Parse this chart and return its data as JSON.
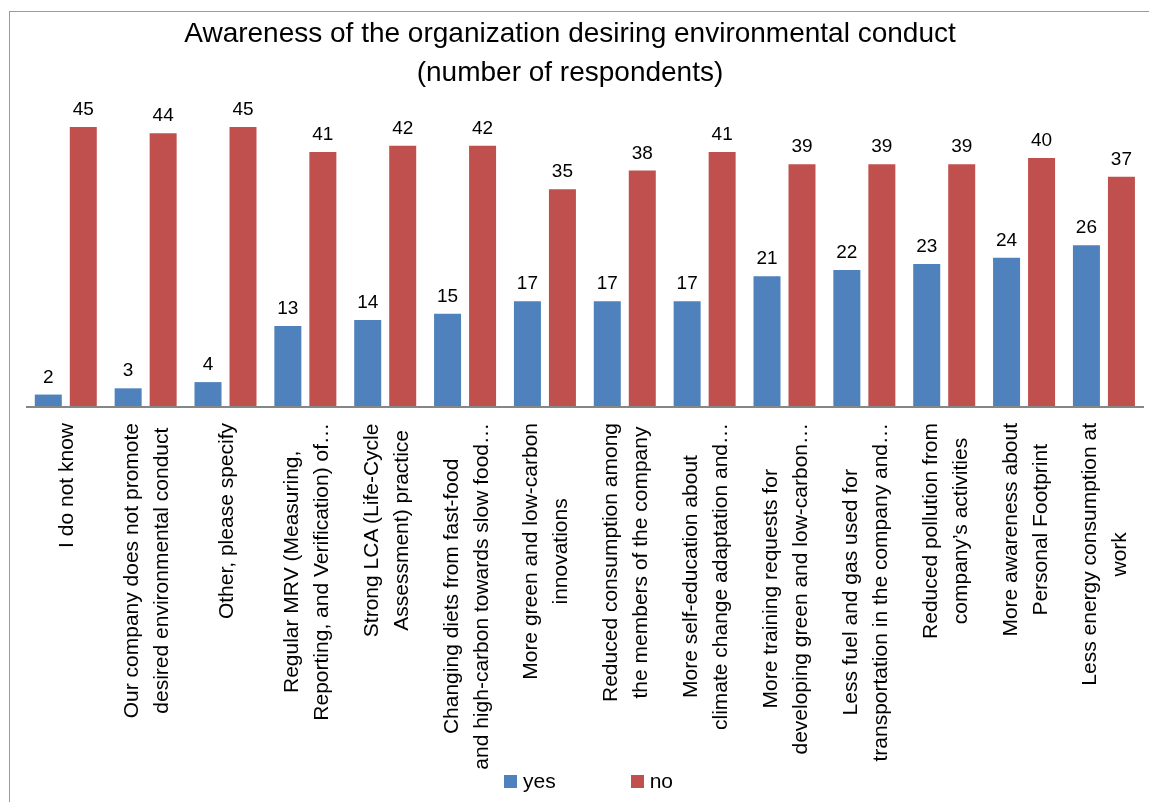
{
  "chart_data": {
    "type": "bar",
    "title": "Awareness of the organization desiring environmental conduct (number of respondents)",
    "categories": [
      "I do not know",
      "Our company does not promote\ndesired environmental conduct",
      "Other, please specify",
      "Regular MRV (Measuring,\nReporting, and Verification) of…",
      "Strong LCA (Life-Cycle\nAssessment) practice",
      "Changing diets from fast-food\nand high-carbon towards slow food…",
      "More green and low-carbon\ninnovations",
      "Reduced consumption among\nthe members of the company",
      "More self-education about\nclimate change adaptation and…",
      "More training requests for\ndeveloping green and low-carbon…",
      "Less fuel and gas used for\ntransportation in the company and…",
      "Reduced pollution from\ncompany’s activities",
      "More awareness about\nPersonal Footprint",
      "Less energy consumption at\nwork"
    ],
    "series": [
      {
        "name": "yes",
        "color": "#4f81bd",
        "values": [
          2,
          3,
          4,
          13,
          14,
          15,
          17,
          17,
          17,
          21,
          22,
          23,
          24,
          26
        ]
      },
      {
        "name": "no",
        "color": "#c0504d",
        "values": [
          45,
          44,
          45,
          41,
          42,
          42,
          35,
          38,
          41,
          39,
          39,
          39,
          40,
          37
        ]
      }
    ],
    "data_labels": true,
    "legend": "bottom",
    "tick_labels": "x"
  }
}
